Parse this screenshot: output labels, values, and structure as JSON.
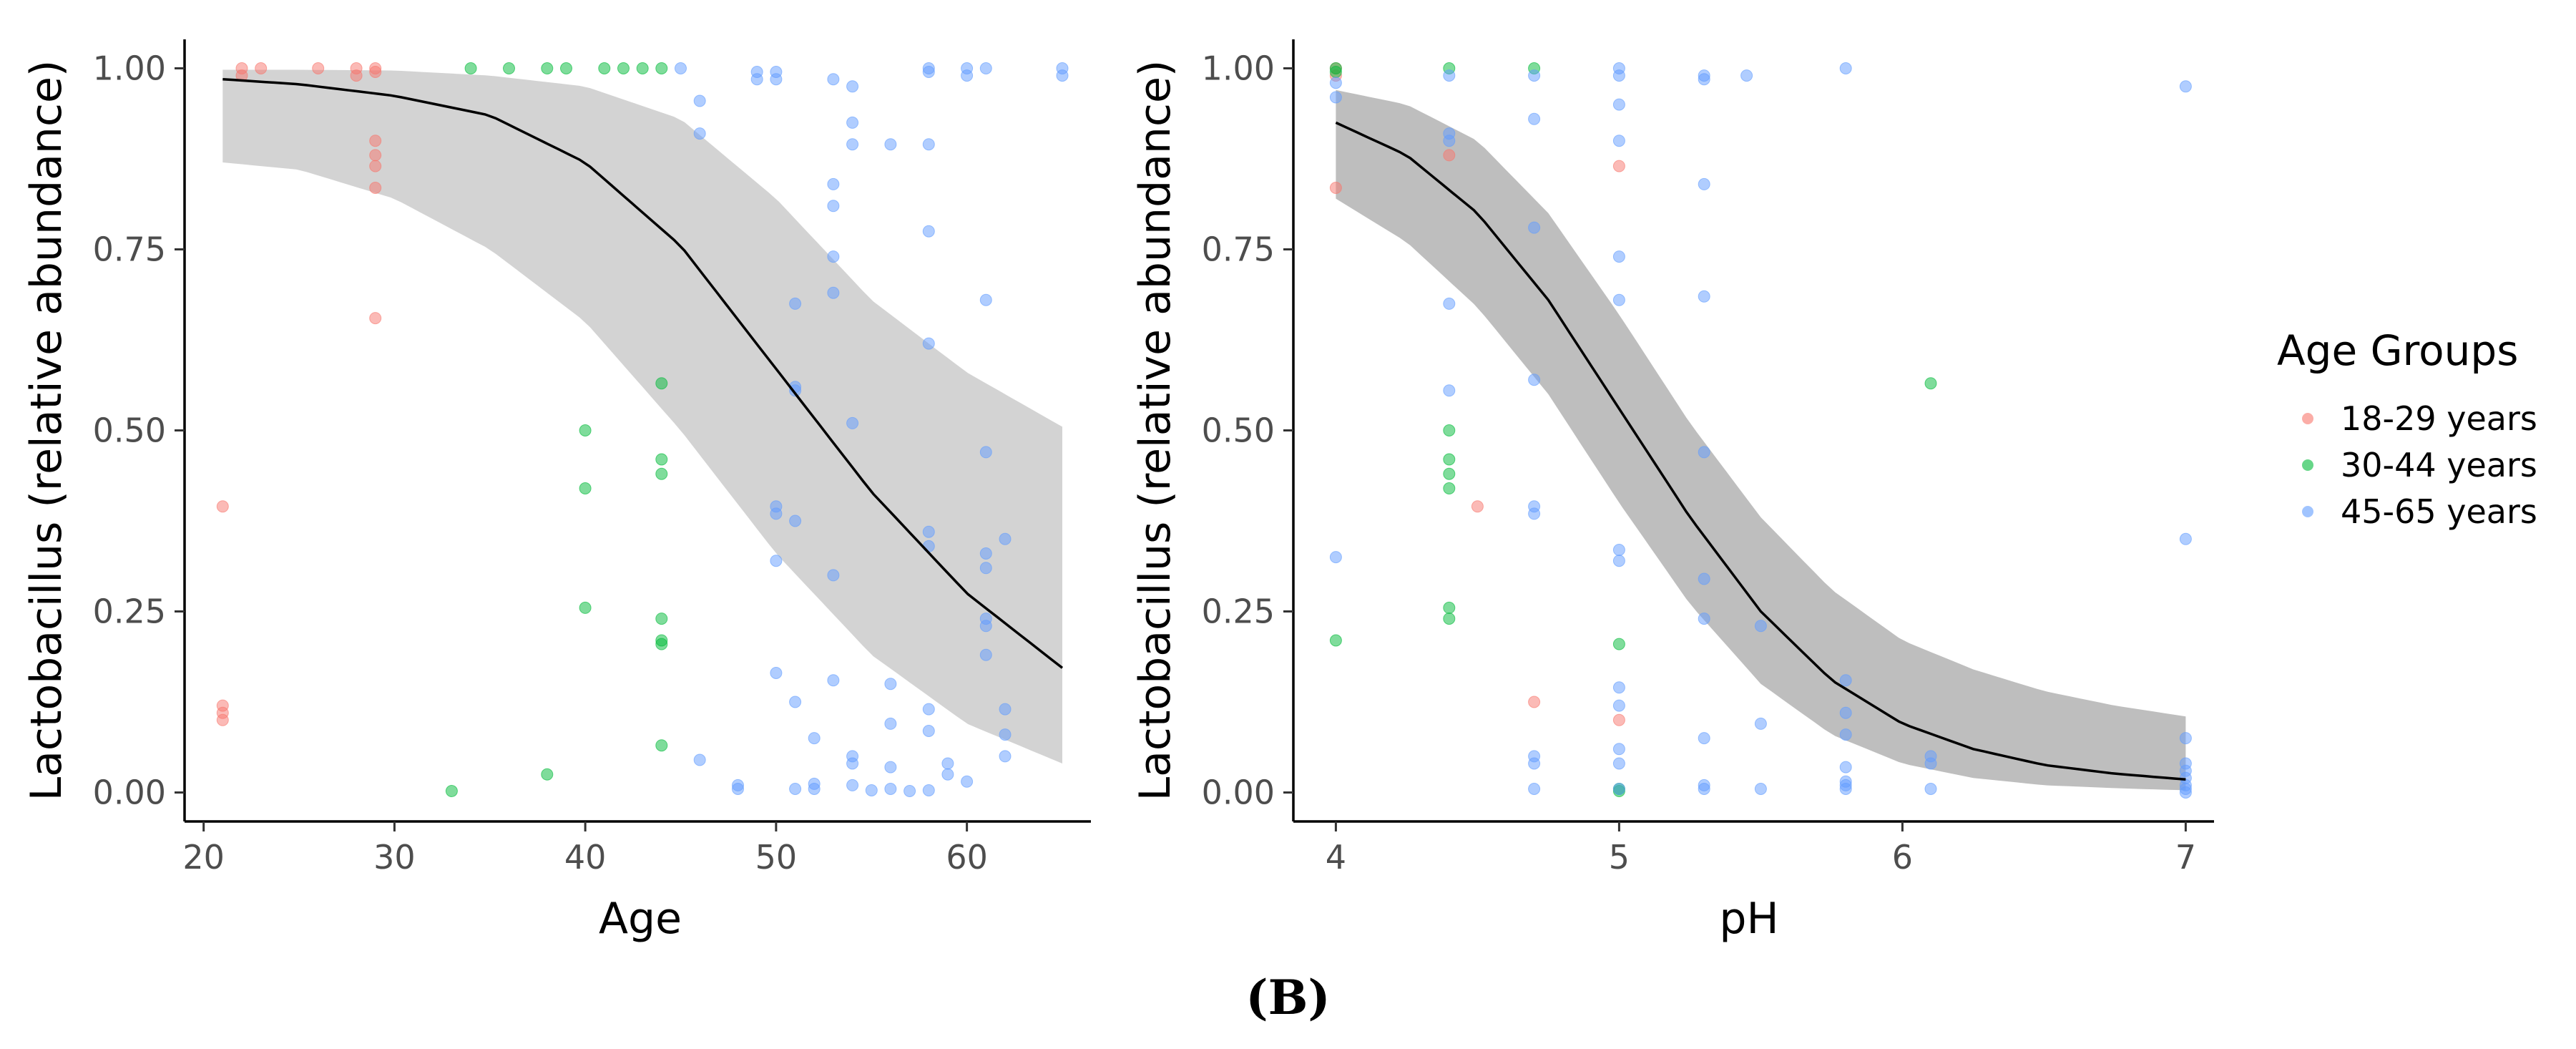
{
  "chart_data": [
    {
      "type": "scatter",
      "title": "",
      "xlabel": "Age",
      "ylabel": "Lactobacillus (relative abundance)",
      "xlim": [
        19,
        66.5
      ],
      "ylim": [
        -0.04,
        1.04
      ],
      "xticks": [
        20,
        30,
        40,
        50,
        60
      ],
      "yticks": [
        0,
        0.25,
        0.5,
        0.75,
        1
      ],
      "ytick_labels": [
        "0.00",
        "0.25",
        "0.50",
        "0.75",
        "1.00"
      ],
      "grid": false,
      "ribbon_color": "#d3d3d3",
      "fit": {
        "model": "logistic",
        "x_range": [
          21,
          65
        ],
        "line": [
          [
            21,
            0.985
          ],
          [
            25,
            0.978
          ],
          [
            30,
            0.962
          ],
          [
            35,
            0.935
          ],
          [
            40,
            0.87
          ],
          [
            45,
            0.755
          ],
          [
            50,
            0.585
          ],
          [
            55,
            0.415
          ],
          [
            60,
            0.275
          ],
          [
            65,
            0.172
          ]
        ],
        "ci_lower": [
          [
            21,
            0.87
          ],
          [
            25,
            0.86
          ],
          [
            30,
            0.82
          ],
          [
            35,
            0.75
          ],
          [
            40,
            0.65
          ],
          [
            45,
            0.5
          ],
          [
            50,
            0.33
          ],
          [
            55,
            0.19
          ],
          [
            60,
            0.095
          ],
          [
            65,
            0.04
          ]
        ],
        "ci_upper": [
          [
            21,
            0.998
          ],
          [
            25,
            0.998
          ],
          [
            30,
            0.997
          ],
          [
            35,
            0.99
          ],
          [
            40,
            0.975
          ],
          [
            45,
            0.93
          ],
          [
            50,
            0.82
          ],
          [
            55,
            0.68
          ],
          [
            60,
            0.58
          ],
          [
            65,
            0.505
          ]
        ]
      },
      "series": [
        {
          "name": "18-29 years",
          "color": "#F8766D",
          "points": [
            [
              22,
              1.0
            ],
            [
              22,
              0.99
            ],
            [
              23,
              1.0
            ],
            [
              26,
              1.0
            ],
            [
              28,
              1.0
            ],
            [
              28,
              0.99
            ],
            [
              29,
              1.0
            ],
            [
              29,
              0.995
            ],
            [
              29,
              0.9
            ],
            [
              29,
              0.88
            ],
            [
              29,
              0.865
            ],
            [
              29,
              0.835
            ],
            [
              29,
              0.655
            ],
            [
              21,
              0.395
            ],
            [
              21,
              0.12
            ],
            [
              21,
              0.11
            ],
            [
              21,
              0.1
            ]
          ]
        },
        {
          "name": "30-44 years",
          "color": "#00BA38",
          "points": [
            [
              34,
              1.0
            ],
            [
              36,
              1.0
            ],
            [
              38,
              1.0
            ],
            [
              39,
              1.0
            ],
            [
              41,
              1.0
            ],
            [
              42,
              1.0
            ],
            [
              43,
              1.0
            ],
            [
              44,
              1.0
            ],
            [
              44,
              0.565
            ],
            [
              40,
              0.5
            ],
            [
              40,
              0.42
            ],
            [
              44,
              0.46
            ],
            [
              44,
              0.44
            ],
            [
              40,
              0.255
            ],
            [
              44,
              0.24
            ],
            [
              44,
              0.21
            ],
            [
              44,
              0.205
            ],
            [
              44,
              0.065
            ],
            [
              38,
              0.025
            ],
            [
              33,
              0.002
            ]
          ]
        },
        {
          "name": "45-65 years",
          "color": "#619CFF",
          "points": [
            [
              45,
              1.0
            ],
            [
              46,
              0.955
            ],
            [
              46,
              0.91
            ],
            [
              49,
              0.995
            ],
            [
              49,
              0.985
            ],
            [
              50,
              0.995
            ],
            [
              50,
              0.985
            ],
            [
              53,
              0.985
            ],
            [
              54,
              0.975
            ],
            [
              54,
              0.925
            ],
            [
              54,
              0.895
            ],
            [
              56,
              0.895
            ],
            [
              58,
              1.0
            ],
            [
              58,
              0.995
            ],
            [
              58,
              0.895
            ],
            [
              60,
              1.0
            ],
            [
              60,
              0.99
            ],
            [
              61,
              1.0
            ],
            [
              65,
              1.0
            ],
            [
              65,
              0.99
            ],
            [
              53,
              0.84
            ],
            [
              53,
              0.81
            ],
            [
              58,
              0.775
            ],
            [
              53,
              0.74
            ],
            [
              53,
              0.69
            ],
            [
              51,
              0.675
            ],
            [
              61,
              0.68
            ],
            [
              58,
              0.62
            ],
            [
              51,
              0.56
            ],
            [
              51,
              0.555
            ],
            [
              54,
              0.51
            ],
            [
              61,
              0.47
            ],
            [
              50,
              0.395
            ],
            [
              50,
              0.385
            ],
            [
              51,
              0.375
            ],
            [
              58,
              0.36
            ],
            [
              58,
              0.34
            ],
            [
              62,
              0.35
            ],
            [
              61,
              0.33
            ],
            [
              61,
              0.31
            ],
            [
              50,
              0.32
            ],
            [
              53,
              0.3
            ],
            [
              61,
              0.24
            ],
            [
              61,
              0.23
            ],
            [
              61,
              0.19
            ],
            [
              50,
              0.165
            ],
            [
              53,
              0.155
            ],
            [
              56,
              0.15
            ],
            [
              51,
              0.125
            ],
            [
              52,
              0.075
            ],
            [
              62,
              0.115
            ],
            [
              58,
              0.115
            ],
            [
              56,
              0.095
            ],
            [
              58,
              0.085
            ],
            [
              62,
              0.08
            ],
            [
              54,
              0.05
            ],
            [
              54,
              0.04
            ],
            [
              46,
              0.045
            ],
            [
              48,
              0.01
            ],
            [
              48,
              0.005
            ],
            [
              51,
              0.005
            ],
            [
              52,
              0.005
            ],
            [
              52,
              0.012
            ],
            [
              54,
              0.01
            ],
            [
              55,
              0.003
            ],
            [
              56,
              0.005
            ],
            [
              56,
              0.035
            ],
            [
              57,
              0.002
            ],
            [
              58,
              0.003
            ],
            [
              59,
              0.025
            ],
            [
              59,
              0.04
            ],
            [
              60,
              0.015
            ],
            [
              62,
              0.05
            ]
          ]
        }
      ]
    },
    {
      "type": "scatter",
      "title": "",
      "xlabel": "pH",
      "ylabel": "Lactobacillus (relative abundance)",
      "xlim": [
        3.85,
        7.1
      ],
      "ylim": [
        -0.04,
        1.04
      ],
      "xticks": [
        4,
        5,
        6,
        7
      ],
      "yticks": [
        0,
        0.25,
        0.5,
        0.75,
        1
      ],
      "ytick_labels": [
        "0.00",
        "0.25",
        "0.50",
        "0.75",
        "1.00"
      ],
      "grid": false,
      "ribbon_color": "#bebebe",
      "fit": {
        "model": "logistic",
        "x_range": [
          4,
          7
        ],
        "line": [
          [
            4.0,
            0.925
          ],
          [
            4.25,
            0.88
          ],
          [
            4.5,
            0.8
          ],
          [
            4.75,
            0.68
          ],
          [
            5.0,
            0.53
          ],
          [
            5.25,
            0.38
          ],
          [
            5.5,
            0.25
          ],
          [
            5.75,
            0.155
          ],
          [
            6.0,
            0.095
          ],
          [
            6.25,
            0.06
          ],
          [
            6.5,
            0.038
          ],
          [
            6.75,
            0.026
          ],
          [
            7.0,
            0.018
          ]
        ],
        "ci_lower": [
          [
            4.0,
            0.82
          ],
          [
            4.25,
            0.76
          ],
          [
            4.5,
            0.67
          ],
          [
            4.75,
            0.55
          ],
          [
            5.0,
            0.4
          ],
          [
            5.25,
            0.26
          ],
          [
            5.5,
            0.15
          ],
          [
            5.75,
            0.08
          ],
          [
            6.0,
            0.04
          ],
          [
            6.25,
            0.02
          ],
          [
            6.5,
            0.01
          ],
          [
            6.75,
            0.006
          ],
          [
            7.0,
            0.003
          ]
        ],
        "ci_upper": [
          [
            4.0,
            0.97
          ],
          [
            4.25,
            0.95
          ],
          [
            4.5,
            0.9
          ],
          [
            4.75,
            0.8
          ],
          [
            5.0,
            0.66
          ],
          [
            5.25,
            0.51
          ],
          [
            5.5,
            0.38
          ],
          [
            5.75,
            0.28
          ],
          [
            6.0,
            0.21
          ],
          [
            6.25,
            0.17
          ],
          [
            6.5,
            0.14
          ],
          [
            6.75,
            0.12
          ],
          [
            7.0,
            0.105
          ]
        ]
      },
      "series": [
        {
          "name": "18-29 years",
          "color": "#F8766D",
          "points": [
            [
              4.0,
              1.0
            ],
            [
              4.0,
              0.99
            ],
            [
              4.0,
              0.835
            ],
            [
              4.4,
              0.88
            ],
            [
              4.5,
              0.395
            ],
            [
              4.7,
              0.125
            ],
            [
              5.0,
              0.865
            ],
            [
              5.0,
              0.1
            ]
          ]
        },
        {
          "name": "30-44 years",
          "color": "#00BA38",
          "points": [
            [
              4.0,
              1.0
            ],
            [
              4.0,
              0.995
            ],
            [
              4.0,
              0.21
            ],
            [
              4.4,
              1.0
            ],
            [
              4.4,
              0.5
            ],
            [
              4.4,
              0.46
            ],
            [
              4.4,
              0.44
            ],
            [
              4.4,
              0.42
            ],
            [
              4.4,
              0.255
            ],
            [
              4.4,
              0.24
            ],
            [
              4.7,
              1.0
            ],
            [
              5.0,
              0.205
            ],
            [
              5.0,
              0.005
            ],
            [
              5.0,
              0.002
            ],
            [
              6.1,
              0.565
            ]
          ]
        },
        {
          "name": "45-65 years",
          "color": "#619CFF",
          "points": [
            [
              4.0,
              0.98
            ],
            [
              4.0,
              0.96
            ],
            [
              4.0,
              0.325
            ],
            [
              4.4,
              0.99
            ],
            [
              4.4,
              0.91
            ],
            [
              4.4,
              0.9
            ],
            [
              4.4,
              0.675
            ],
            [
              4.4,
              0.555
            ],
            [
              4.7,
              0.99
            ],
            [
              4.7,
              0.93
            ],
            [
              4.7,
              0.78
            ],
            [
              4.7,
              0.57
            ],
            [
              4.7,
              0.395
            ],
            [
              4.7,
              0.385
            ],
            [
              4.7,
              0.05
            ],
            [
              4.7,
              0.04
            ],
            [
              4.7,
              0.005
            ],
            [
              5.0,
              1.0
            ],
            [
              5.0,
              0.99
            ],
            [
              5.0,
              0.95
            ],
            [
              5.0,
              0.9
            ],
            [
              5.0,
              0.74
            ],
            [
              5.0,
              0.68
            ],
            [
              5.0,
              0.335
            ],
            [
              5.0,
              0.32
            ],
            [
              5.0,
              0.145
            ],
            [
              5.0,
              0.12
            ],
            [
              5.0,
              0.06
            ],
            [
              5.0,
              0.04
            ],
            [
              5.0,
              0.005
            ],
            [
              5.3,
              0.99
            ],
            [
              5.3,
              0.985
            ],
            [
              5.3,
              0.84
            ],
            [
              5.3,
              0.685
            ],
            [
              5.3,
              0.47
            ],
            [
              5.3,
              0.295
            ],
            [
              5.3,
              0.24
            ],
            [
              5.3,
              0.075
            ],
            [
              5.3,
              0.01
            ],
            [
              5.3,
              0.005
            ],
            [
              5.45,
              0.99
            ],
            [
              5.5,
              0.23
            ],
            [
              5.5,
              0.095
            ],
            [
              5.5,
              0.005
            ],
            [
              5.8,
              1.0
            ],
            [
              5.8,
              0.155
            ],
            [
              5.8,
              0.11
            ],
            [
              5.8,
              0.08
            ],
            [
              5.8,
              0.035
            ],
            [
              5.8,
              0.015
            ],
            [
              5.8,
              0.01
            ],
            [
              5.8,
              0.005
            ],
            [
              6.1,
              0.05
            ],
            [
              6.1,
              0.04
            ],
            [
              6.1,
              0.005
            ],
            [
              7.0,
              0.975
            ],
            [
              7.0,
              0.35
            ],
            [
              7.0,
              0.075
            ],
            [
              7.0,
              0.04
            ],
            [
              7.0,
              0.03
            ],
            [
              7.0,
              0.02
            ],
            [
              7.0,
              0.01
            ],
            [
              7.0,
              0.005
            ],
            [
              7.0,
              0.0
            ]
          ]
        }
      ]
    }
  ],
  "legend": {
    "title": "Age Groups",
    "items": [
      {
        "label": "18-29 years",
        "color": "#F8766D"
      },
      {
        "label": "30-44 years",
        "color": "#00BA38"
      },
      {
        "label": "45-65 years",
        "color": "#619CFF"
      }
    ]
  },
  "panel_label": "(B)"
}
